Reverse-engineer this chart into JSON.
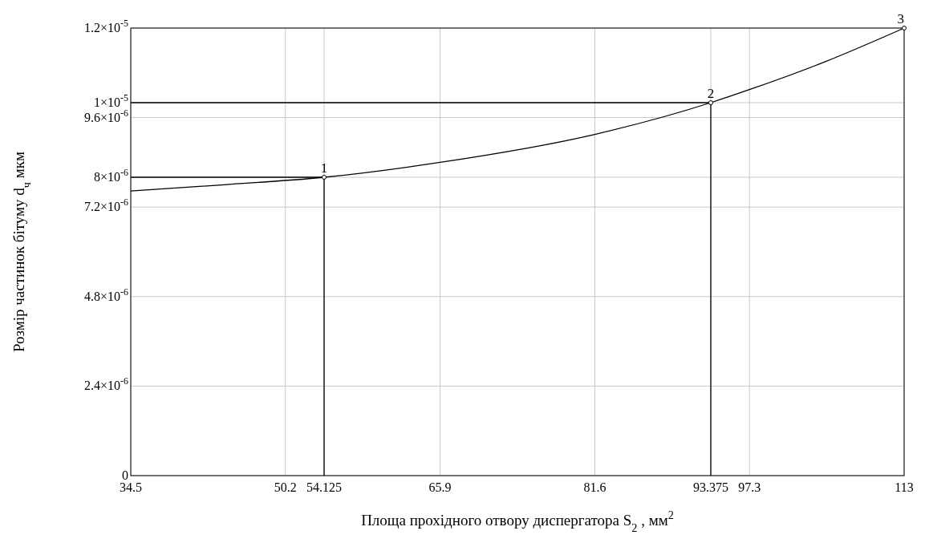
{
  "chart_data": {
    "type": "line",
    "xlabel": "Площа прохідного отвору диспергатора S$_{2}$ , мм$^{2}$",
    "ylabel": "Розмір частинок бітуму d$_{ч}$ мкм",
    "xlim": [
      34.5,
      113
    ],
    "ylim": [
      0,
      1.2e-05
    ],
    "xticks": [
      34.5,
      50.2,
      54.125,
      65.9,
      81.6,
      93.375,
      97.3,
      113
    ],
    "yticks": [
      0,
      {
        "value": 2.4e-06,
        "label": "2.4×10$^{-6}$"
      },
      {
        "value": 4.8e-06,
        "label": "4.8×10$^{-6}$"
      },
      {
        "value": 7.2e-06,
        "label": "7.2×10$^{-6}$"
      },
      {
        "value": 8e-06,
        "label": "8×10$^{-6}$"
      },
      {
        "value": 9.6e-06,
        "label": "9.6×10$^{-6}$"
      },
      {
        "value": 1e-05,
        "label": "1×10$^{-5}$"
      },
      {
        "value": 1.2e-05,
        "label": "1.2×10$^{-5}$"
      }
    ],
    "grid": true,
    "marker": "none",
    "line_style": "solid",
    "series": [
      {
        "color": "#000000",
        "x": [
          34.5,
          44,
          54.125,
          65.9,
          81.6,
          93.375,
          97.3,
          105,
          113
        ],
        "values": [
          7.63e-06,
          7.8e-06,
          8e-06,
          8.4e-06,
          9.15e-06,
          1e-05,
          1.035e-05,
          1.11e-05,
          1.2e-05
        ]
      },
      {
        "color": "#000000",
        "x": [
          34.5,
          54.125,
          54.125
        ],
        "values": [
          8e-06,
          8e-06,
          0
        ]
      },
      {
        "color": "#000000",
        "x": [
          34.5,
          93.375,
          93.375
        ],
        "values": [
          1e-05,
          1e-05,
          0
        ]
      },
      {
        "type": "scatter",
        "marker": "circle",
        "color": "#000000",
        "x": [
          54.125,
          93.375,
          113
        ],
        "values": [
          8e-06,
          1e-05,
          1.2e-05
        ]
      }
    ],
    "annotations": [
      {
        "text": "1",
        "x": 54.125,
        "y": 8e-06
      },
      {
        "text": "2",
        "x": 93.375,
        "y": 1e-05
      },
      {
        "text": "3",
        "x": 113,
        "y": 1.2e-05
      }
    ]
  }
}
